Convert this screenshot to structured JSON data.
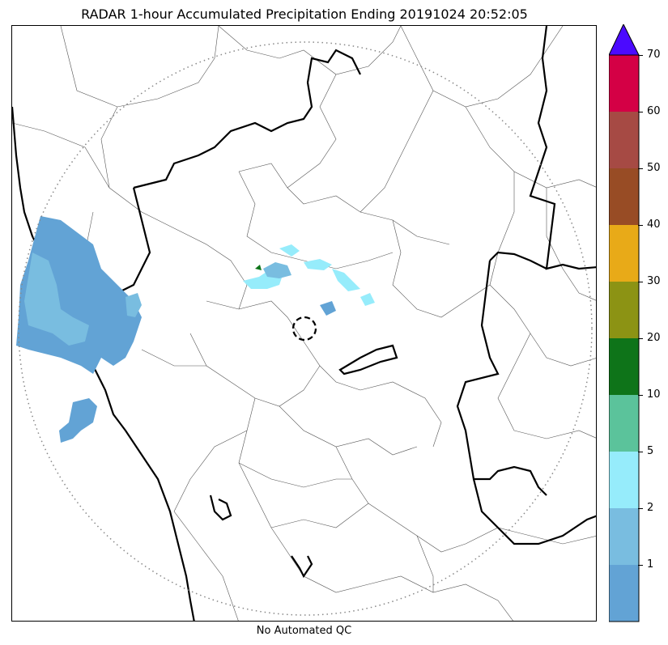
{
  "title": "RADAR 1-hour Accumulated Precipitation Ending 20191024 20:52:05",
  "qc_label": "No Automated QC",
  "colorbar": {
    "tick_labels": [
      "1",
      "2",
      "5",
      "10",
      "20",
      "30",
      "40",
      "50",
      "60",
      "70"
    ],
    "bands": [
      {
        "color": "#62a3d5"
      },
      {
        "color": "#79bde0"
      },
      {
        "color": "#96ecfb"
      },
      {
        "color": "#5bc39b"
      },
      {
        "color": "#0e7419"
      },
      {
        "color": "#8c9314"
      },
      {
        "color": "#e8aa18"
      },
      {
        "color": "#984c25"
      },
      {
        "color": "#a64a44"
      },
      {
        "color": "#d40045"
      }
    ],
    "extend_color": "#4b0aff"
  },
  "map_style": {
    "range_ring_color": "#888888",
    "precip_light": "#62a3d5",
    "precip_medium": "#79bde0",
    "precip_cyan": "#96ecfb",
    "precip_green": "#0e7419"
  }
}
